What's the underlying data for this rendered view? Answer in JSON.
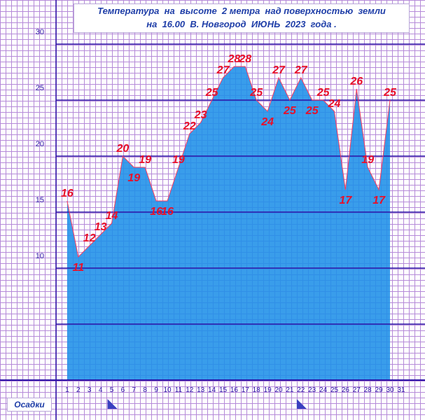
{
  "title": {
    "line1": "Температура  на  высоте  2 метра  над поверхностью  земли",
    "line2": "на  16.00  В. Новгород  ИЮНЬ  2023  года ."
  },
  "precip_label": "Осадки",
  "colors": {
    "grid_minor": "#b58ad8",
    "grid_major": "#2d13a6",
    "area_fill": "#1e90e8",
    "line": "#ff3b5c",
    "data_label": "#e8102a",
    "tick_label": "#2d13a6",
    "marker": "#3a3fc0"
  },
  "chart_data": {
    "type": "area",
    "title": "Температура  на  высоте  2 метра  над поверхностью  земли  на  16.00  В. Новгород  ИЮНЬ  2023  года .",
    "xlabel": "",
    "ylabel": "",
    "x": [
      1,
      2,
      3,
      4,
      5,
      6,
      7,
      8,
      9,
      10,
      11,
      12,
      13,
      14,
      15,
      16,
      17,
      18,
      19,
      20,
      21,
      22,
      23,
      24,
      25,
      26,
      27,
      28,
      29,
      30
    ],
    "x_ticks": [
      1,
      2,
      3,
      4,
      5,
      6,
      7,
      8,
      9,
      10,
      11,
      12,
      13,
      14,
      15,
      16,
      17,
      18,
      19,
      20,
      21,
      22,
      23,
      24,
      25,
      26,
      27,
      28,
      29,
      30,
      31
    ],
    "values": [
      16,
      11,
      12,
      13,
      14,
      20,
      19,
      19,
      16,
      16,
      19,
      22,
      23,
      25,
      27,
      28,
      28,
      25,
      24,
      27,
      25,
      27,
      25,
      25,
      24,
      17,
      26,
      19,
      17,
      25
    ],
    "data_labels": [
      "16",
      "11",
      "12",
      "13",
      "14",
      "20",
      "19",
      "19",
      "16",
      "16",
      "19",
      "22",
      "23",
      "25",
      "27",
      "28",
      "28",
      "25",
      "24",
      "27",
      "25",
      "27",
      "25",
      "25",
      "24",
      "17",
      "26",
      "19",
      "17",
      "25"
    ],
    "y_ticks": [
      10,
      15,
      20,
      25,
      30
    ],
    "ylim": [
      0,
      33.5
    ],
    "xlim": [
      0,
      32.5
    ],
    "grid": true,
    "precipitation_markers_days": [
      4.5,
      21.5
    ]
  }
}
